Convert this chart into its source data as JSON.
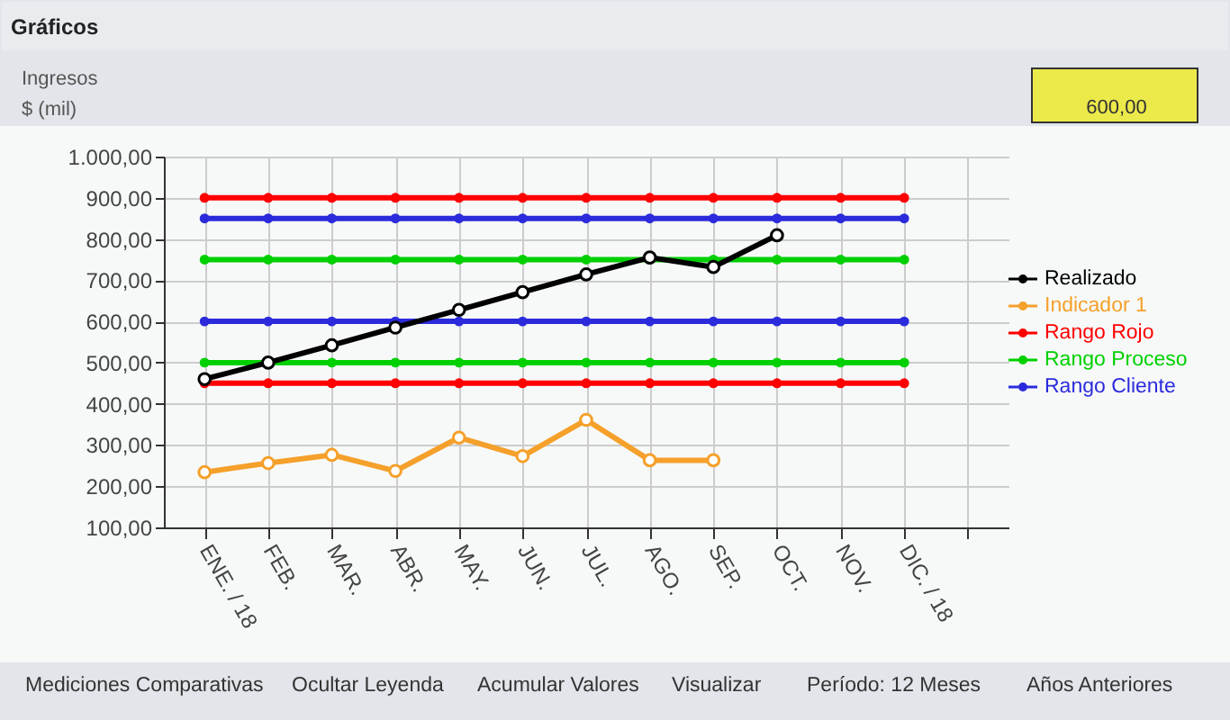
{
  "chart_data": {
    "type": "line",
    "title": "Ingresos",
    "subtitle": "$ (mil)",
    "annotations": [
      "Gráficos",
      "600,00",
      "Mediciones Comparativas",
      "Ocultar Leyenda",
      "Acumular Valores",
      "Visualizar",
      "Período: 12 Meses",
      "Años Anteriores"
    ],
    "categories": [
      "ENE. / 18",
      "FEB.",
      "MAR.",
      "ABR.",
      "MAY.",
      "JUN.",
      "JUL.",
      "AGO.",
      "SEP.",
      "OCT.",
      "NOV.",
      "DIC. / 18",
      null
    ],
    "series": [
      {
        "name": "Realizado",
        "color": "#000000",
        "values": [
          460,
          500,
          542,
          585,
          628,
          671,
          714,
          755,
          732,
          809,
          null,
          null,
          null
        ]
      },
      {
        "name": "Indicador 1",
        "color": "#f5a02a",
        "values": [
          234,
          256,
          276,
          237,
          318,
          273,
          361,
          263,
          263,
          null,
          null,
          null,
          null
        ]
      },
      {
        "name": "Rango Rojo",
        "color": "#ff0000",
        "values": [
          900,
          900,
          900,
          900,
          900,
          900,
          900,
          900,
          900,
          900,
          900,
          900,
          null
        ]
      },
      {
        "name": "Rango Proceso",
        "color": "#00d000",
        "values": [
          750,
          750,
          750,
          750,
          750,
          750,
          750,
          750,
          750,
          750,
          750,
          750,
          null
        ]
      },
      {
        "name": "Rango Cliente",
        "color": "#2b2bdc",
        "values": [
          850,
          850,
          850,
          850,
          850,
          850,
          850,
          850,
          850,
          850,
          850,
          850,
          null
        ]
      },
      {
        "color": "#ff0000",
        "values": [
          450,
          450,
          450,
          450,
          450,
          450,
          450,
          450,
          450,
          450,
          450,
          450,
          null
        ]
      },
      {
        "color": "#00d000",
        "values": [
          500,
          500,
          500,
          500,
          500,
          500,
          500,
          500,
          500,
          500,
          500,
          500,
          null
        ]
      },
      {
        "color": "#2b2bdc",
        "values": [
          600,
          600,
          600,
          600,
          600,
          600,
          600,
          600,
          600,
          600,
          600,
          600,
          null
        ]
      }
    ],
    "ylim": [
      100,
      1000
    ],
    "yticks": [
      {
        "value": 100,
        "label": "100,00"
      },
      {
        "value": 200,
        "label": "200,00"
      },
      {
        "value": 300,
        "label": "300,00"
      },
      {
        "value": 400,
        "label": "400,00"
      },
      {
        "value": 500,
        "label": "500,00"
      },
      {
        "value": 600,
        "label": "600,00"
      },
      {
        "value": 700,
        "label": "700,00"
      },
      {
        "value": 800,
        "label": "800,00"
      },
      {
        "value": 900,
        "label": "900,00"
      },
      {
        "value": 1000,
        "label": "1.000,00"
      }
    ],
    "grid": true,
    "legend": "right",
    "marker": "circle",
    "line_style": "solid"
  }
}
